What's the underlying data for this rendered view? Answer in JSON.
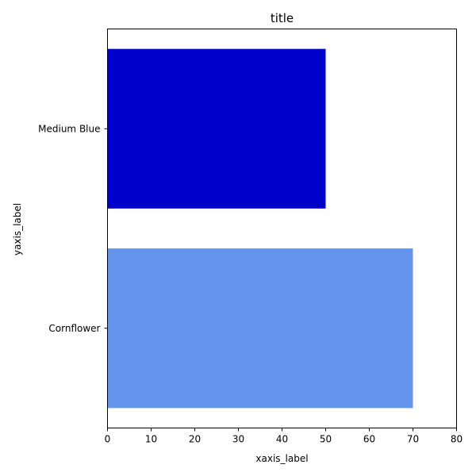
{
  "chart_data": {
    "type": "bar",
    "orientation": "horizontal",
    "title": "title",
    "xlabel": "xaxis_label",
    "ylabel": "yaxis_label",
    "categories": [
      "Cornflower",
      "Medium Blue"
    ],
    "values": [
      70,
      50
    ],
    "colors": [
      "#6495ED",
      "#0000CD"
    ],
    "xlim": [
      0,
      80
    ],
    "xticks": [
      "0",
      "10",
      "20",
      "30",
      "40",
      "50",
      "60",
      "70",
      "80"
    ],
    "grid": false,
    "legend": "none"
  }
}
